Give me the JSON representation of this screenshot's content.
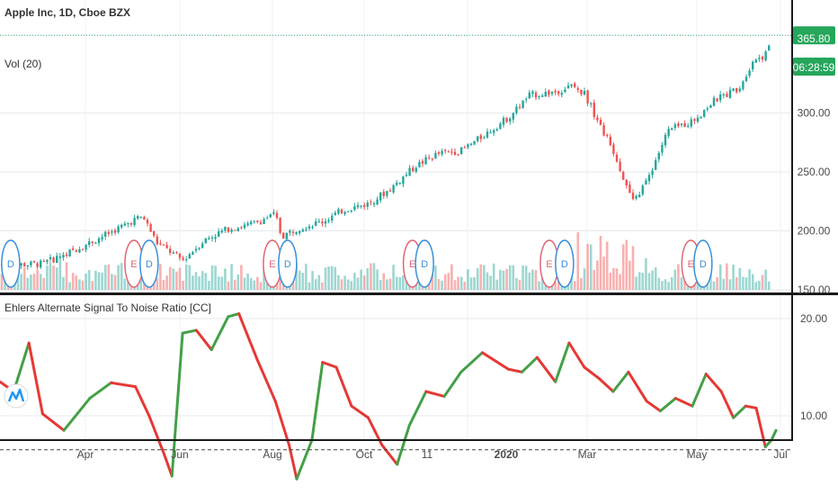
{
  "header": {
    "symbol_title": "Apple Inc, 1D, Cboe BZX",
    "volume_label": "Vol (20)",
    "indicator_title": "Ehlers Alternate Signal To Noise Ratio [CC]"
  },
  "price_tags": {
    "last_price": "365.80",
    "countdown": "06:28:59",
    "tag_color": "#26a65b"
  },
  "colors": {
    "up": "#26a69a",
    "down": "#ef5350",
    "line_up": "#43a047",
    "line_down": "#e53935",
    "earnings": "#e06677",
    "dividend": "#3a8fd9"
  },
  "chart_data": [
    {
      "type": "candlestick",
      "title": "Apple Inc, 1D, Cboe BZX",
      "ylim": [
        145,
        370
      ],
      "y_ticks": [
        "150.00",
        "200.00",
        "250.00",
        "300.00"
      ],
      "x_ticks": [
        "Apr",
        "Jun",
        "Aug",
        "Oct",
        "11",
        "2020",
        "Mar",
        "May",
        "Jul"
      ],
      "close_path": [
        {
          "x": "2019-03-01",
          "y": 172
        },
        {
          "x": "2019-03-15",
          "y": 180
        },
        {
          "x": "2019-04-01",
          "y": 190
        },
        {
          "x": "2019-04-15",
          "y": 199
        },
        {
          "x": "2019-05-01",
          "y": 210
        },
        {
          "x": "2019-05-06",
          "y": 212
        },
        {
          "x": "2019-05-15",
          "y": 190
        },
        {
          "x": "2019-06-01",
          "y": 175
        },
        {
          "x": "2019-06-15",
          "y": 192
        },
        {
          "x": "2019-07-01",
          "y": 202
        },
        {
          "x": "2019-07-15",
          "y": 205
        },
        {
          "x": "2019-08-01",
          "y": 214
        },
        {
          "x": "2019-08-05",
          "y": 195
        },
        {
          "x": "2019-08-15",
          "y": 202
        },
        {
          "x": "2019-09-01",
          "y": 208
        },
        {
          "x": "2019-09-15",
          "y": 218
        },
        {
          "x": "2019-10-01",
          "y": 223
        },
        {
          "x": "2019-10-15",
          "y": 235
        },
        {
          "x": "2019-11-01",
          "y": 255
        },
        {
          "x": "2019-11-15",
          "y": 265
        },
        {
          "x": "2019-12-01",
          "y": 268
        },
        {
          "x": "2019-12-15",
          "y": 280
        },
        {
          "x": "2020-01-01",
          "y": 296
        },
        {
          "x": "2020-01-15",
          "y": 315
        },
        {
          "x": "2020-02-01",
          "y": 318
        },
        {
          "x": "2020-02-12",
          "y": 323
        },
        {
          "x": "2020-02-20",
          "y": 317
        },
        {
          "x": "2020-03-01",
          "y": 290
        },
        {
          "x": "2020-03-10",
          "y": 268
        },
        {
          "x": "2020-03-23",
          "y": 224
        },
        {
          "x": "2020-04-01",
          "y": 242
        },
        {
          "x": "2020-04-15",
          "y": 285
        },
        {
          "x": "2020-05-01",
          "y": 293
        },
        {
          "x": "2020-05-15",
          "y": 310
        },
        {
          "x": "2020-06-01",
          "y": 322
        },
        {
          "x": "2020-06-10",
          "y": 345
        },
        {
          "x": "2020-06-19",
          "y": 350
        },
        {
          "x": "2020-06-22",
          "y": 365.8
        }
      ],
      "volume_series": {
        "name": "Vol (20)"
      },
      "events": [
        {
          "label": "D",
          "type": "dividend",
          "x": "2019-02-08"
        },
        {
          "label": "E",
          "type": "earnings",
          "x": "2019-04-30"
        },
        {
          "label": "D",
          "type": "dividend",
          "x": "2019-05-10"
        },
        {
          "label": "E",
          "type": "earnings",
          "x": "2019-07-30"
        },
        {
          "label": "D",
          "type": "dividend",
          "x": "2019-08-09"
        },
        {
          "label": "E",
          "type": "earnings",
          "x": "2019-10-30"
        },
        {
          "label": "D",
          "type": "dividend",
          "x": "2019-11-07"
        },
        {
          "label": "E",
          "type": "earnings",
          "x": "2020-01-28"
        },
        {
          "label": "D",
          "type": "dividend",
          "x": "2020-02-07"
        },
        {
          "label": "E",
          "type": "earnings",
          "x": "2020-04-30"
        },
        {
          "label": "D",
          "type": "dividend",
          "x": "2020-05-08"
        }
      ]
    },
    {
      "type": "line",
      "title": "Ehlers Alternate Signal To Noise Ratio [CC]",
      "ylim": [
        2,
        22
      ],
      "y_ticks": [
        "10.00",
        "20.00"
      ],
      "reference_level": 6.5,
      "series": [
        {
          "values": [
            {
              "x": "2019-02-01",
              "y": 13.5
            },
            {
              "x": "2019-02-10",
              "y": 12.5
            },
            {
              "x": "2019-02-20",
              "y": 17.5
            },
            {
              "x": "2019-03-01",
              "y": 10.2
            },
            {
              "x": "2019-03-15",
              "y": 8.5
            },
            {
              "x": "2019-04-01",
              "y": 11.8
            },
            {
              "x": "2019-04-15",
              "y": 13.4
            },
            {
              "x": "2019-05-01",
              "y": 13.0
            },
            {
              "x": "2019-05-10",
              "y": 10.0
            },
            {
              "x": "2019-05-20",
              "y": 6.0
            },
            {
              "x": "2019-05-25",
              "y": 3.8
            },
            {
              "x": "2019-06-01",
              "y": 18.5
            },
            {
              "x": "2019-06-10",
              "y": 18.8
            },
            {
              "x": "2019-06-20",
              "y": 16.8
            },
            {
              "x": "2019-07-01",
              "y": 20.2
            },
            {
              "x": "2019-07-08",
              "y": 20.5
            },
            {
              "x": "2019-07-20",
              "y": 15.8
            },
            {
              "x": "2019-08-01",
              "y": 11.5
            },
            {
              "x": "2019-08-10",
              "y": 7.0
            },
            {
              "x": "2019-08-15",
              "y": 3.5
            },
            {
              "x": "2019-08-25",
              "y": 7.5
            },
            {
              "x": "2019-09-01",
              "y": 15.5
            },
            {
              "x": "2019-09-10",
              "y": 15.0
            },
            {
              "x": "2019-09-20",
              "y": 11.0
            },
            {
              "x": "2019-10-01",
              "y": 9.8
            },
            {
              "x": "2019-10-10",
              "y": 7.0
            },
            {
              "x": "2019-10-20",
              "y": 5.0
            },
            {
              "x": "2019-10-28",
              "y": 9.0
            },
            {
              "x": "2019-11-08",
              "y": 12.5
            },
            {
              "x": "2019-11-20",
              "y": 12.0
            },
            {
              "x": "2019-12-01",
              "y": 14.5
            },
            {
              "x": "2019-12-15",
              "y": 16.5
            },
            {
              "x": "2020-01-01",
              "y": 14.8
            },
            {
              "x": "2020-01-10",
              "y": 14.5
            },
            {
              "x": "2020-01-20",
              "y": 16.0
            },
            {
              "x": "2020-02-01",
              "y": 13.5
            },
            {
              "x": "2020-02-10",
              "y": 17.5
            },
            {
              "x": "2020-02-20",
              "y": 15.0
            },
            {
              "x": "2020-03-01",
              "y": 13.8
            },
            {
              "x": "2020-03-10",
              "y": 12.5
            },
            {
              "x": "2020-03-20",
              "y": 14.5
            },
            {
              "x": "2020-04-01",
              "y": 11.5
            },
            {
              "x": "2020-04-10",
              "y": 10.5
            },
            {
              "x": "2020-04-20",
              "y": 11.8
            },
            {
              "x": "2020-05-01",
              "y": 11.0
            },
            {
              "x": "2020-05-10",
              "y": 14.3
            },
            {
              "x": "2020-05-20",
              "y": 12.5
            },
            {
              "x": "2020-05-28",
              "y": 9.8
            },
            {
              "x": "2020-06-05",
              "y": 11.0
            },
            {
              "x": "2020-06-12",
              "y": 10.8
            },
            {
              "x": "2020-06-18",
              "y": 6.8
            },
            {
              "x": "2020-06-22",
              "y": 7.5
            },
            {
              "x": "2020-06-25",
              "y": 8.5
            }
          ]
        }
      ]
    }
  ]
}
